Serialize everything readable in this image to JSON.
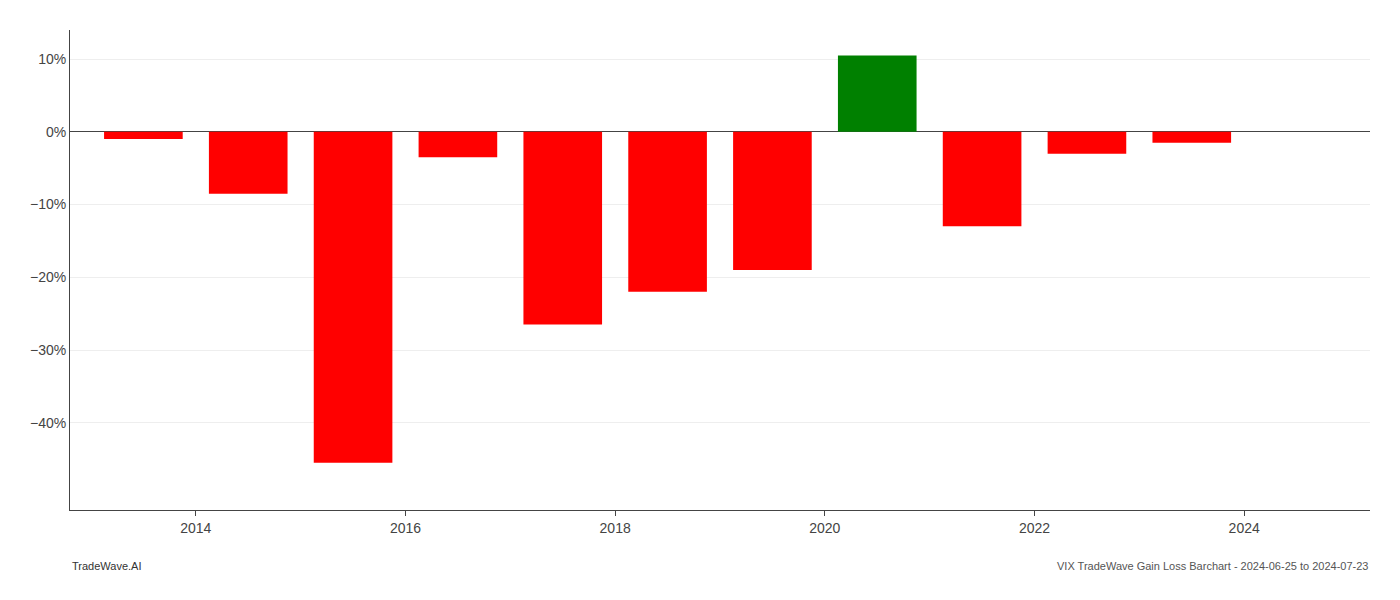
{
  "chart_data": {
    "type": "bar",
    "x": [
      2013.5,
      2014.5,
      2015.5,
      2016.5,
      2017.5,
      2018.5,
      2019.5,
      2020.5,
      2021.5,
      2022.5,
      2023.5
    ],
    "values": [
      -1.0,
      -8.5,
      -45.5,
      -3.5,
      -26.5,
      -22.0,
      -19.0,
      10.5,
      -13.0,
      -3.0,
      -1.5
    ],
    "colors": [
      "#ff0000",
      "#ff0000",
      "#ff0000",
      "#ff0000",
      "#ff0000",
      "#ff0000",
      "#ff0000",
      "#008000",
      "#ff0000",
      "#ff0000",
      "#ff0000"
    ],
    "xlim": [
      2012.8,
      2025.2
    ],
    "xticks": [
      2014,
      2016,
      2018,
      2020,
      2022,
      2024
    ],
    "ylim": [
      -52,
      14
    ],
    "yticks": [
      {
        "value": 10,
        "label": "10%"
      },
      {
        "value": 0,
        "label": "0%"
      },
      {
        "value": -10,
        "label": "−10%"
      },
      {
        "value": -20,
        "label": "−20%"
      },
      {
        "value": -30,
        "label": "−30%"
      },
      {
        "value": -40,
        "label": "−40%"
      }
    ],
    "grid": true,
    "annotations": [
      "TradeWave.AI",
      "VIX TradeWave Gain Loss Barchart - 2024-06-25 to 2024-07-23"
    ]
  }
}
